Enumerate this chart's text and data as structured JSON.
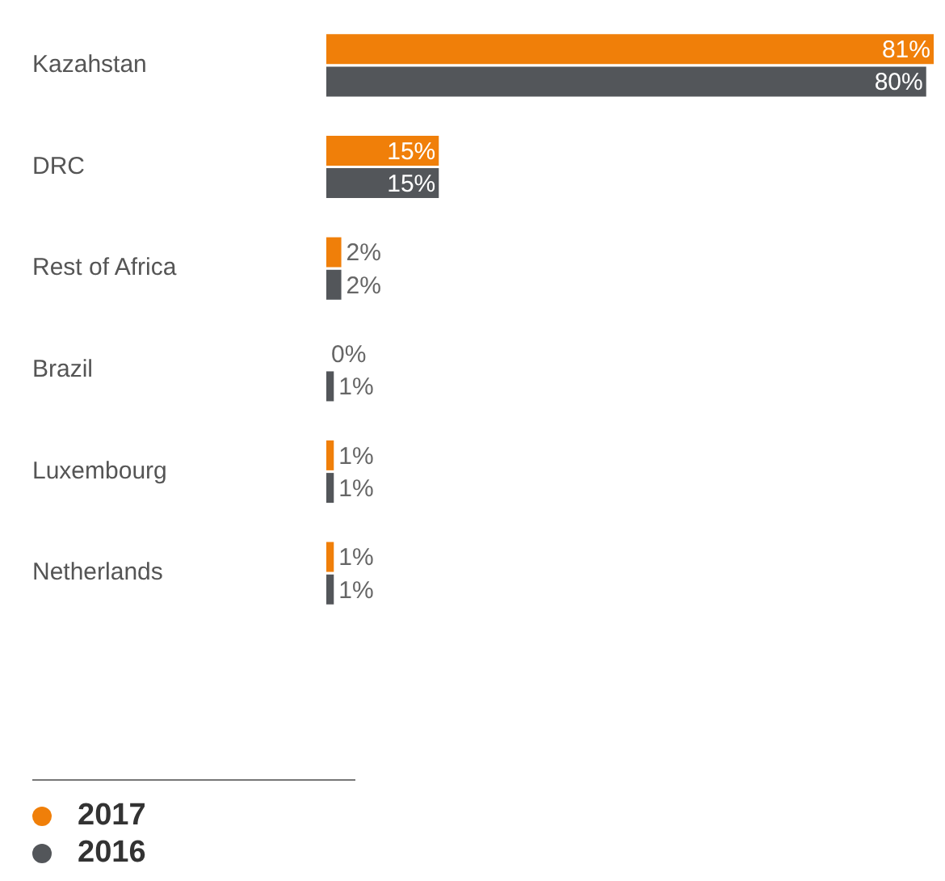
{
  "chart_data": {
    "type": "bar",
    "orientation": "horizontal",
    "categories": [
      "Kazahstan",
      "DRC",
      "Rest of Africa",
      "Brazil",
      "Luxembourg",
      "Netherlands"
    ],
    "series": [
      {
        "name": "2017",
        "color": "#f07f09",
        "values": [
          81,
          15,
          2,
          0,
          1,
          1
        ],
        "value_labels": [
          "81%",
          "15%",
          "2%",
          "0%",
          "1%",
          "1%"
        ]
      },
      {
        "name": "2016",
        "color": "#53565a",
        "values": [
          80,
          15,
          2,
          1,
          1,
          1
        ],
        "value_labels": [
          "80%",
          "15%",
          "2%",
          "1%",
          "1%",
          "1%"
        ]
      }
    ],
    "legend": "bottom left"
  }
}
